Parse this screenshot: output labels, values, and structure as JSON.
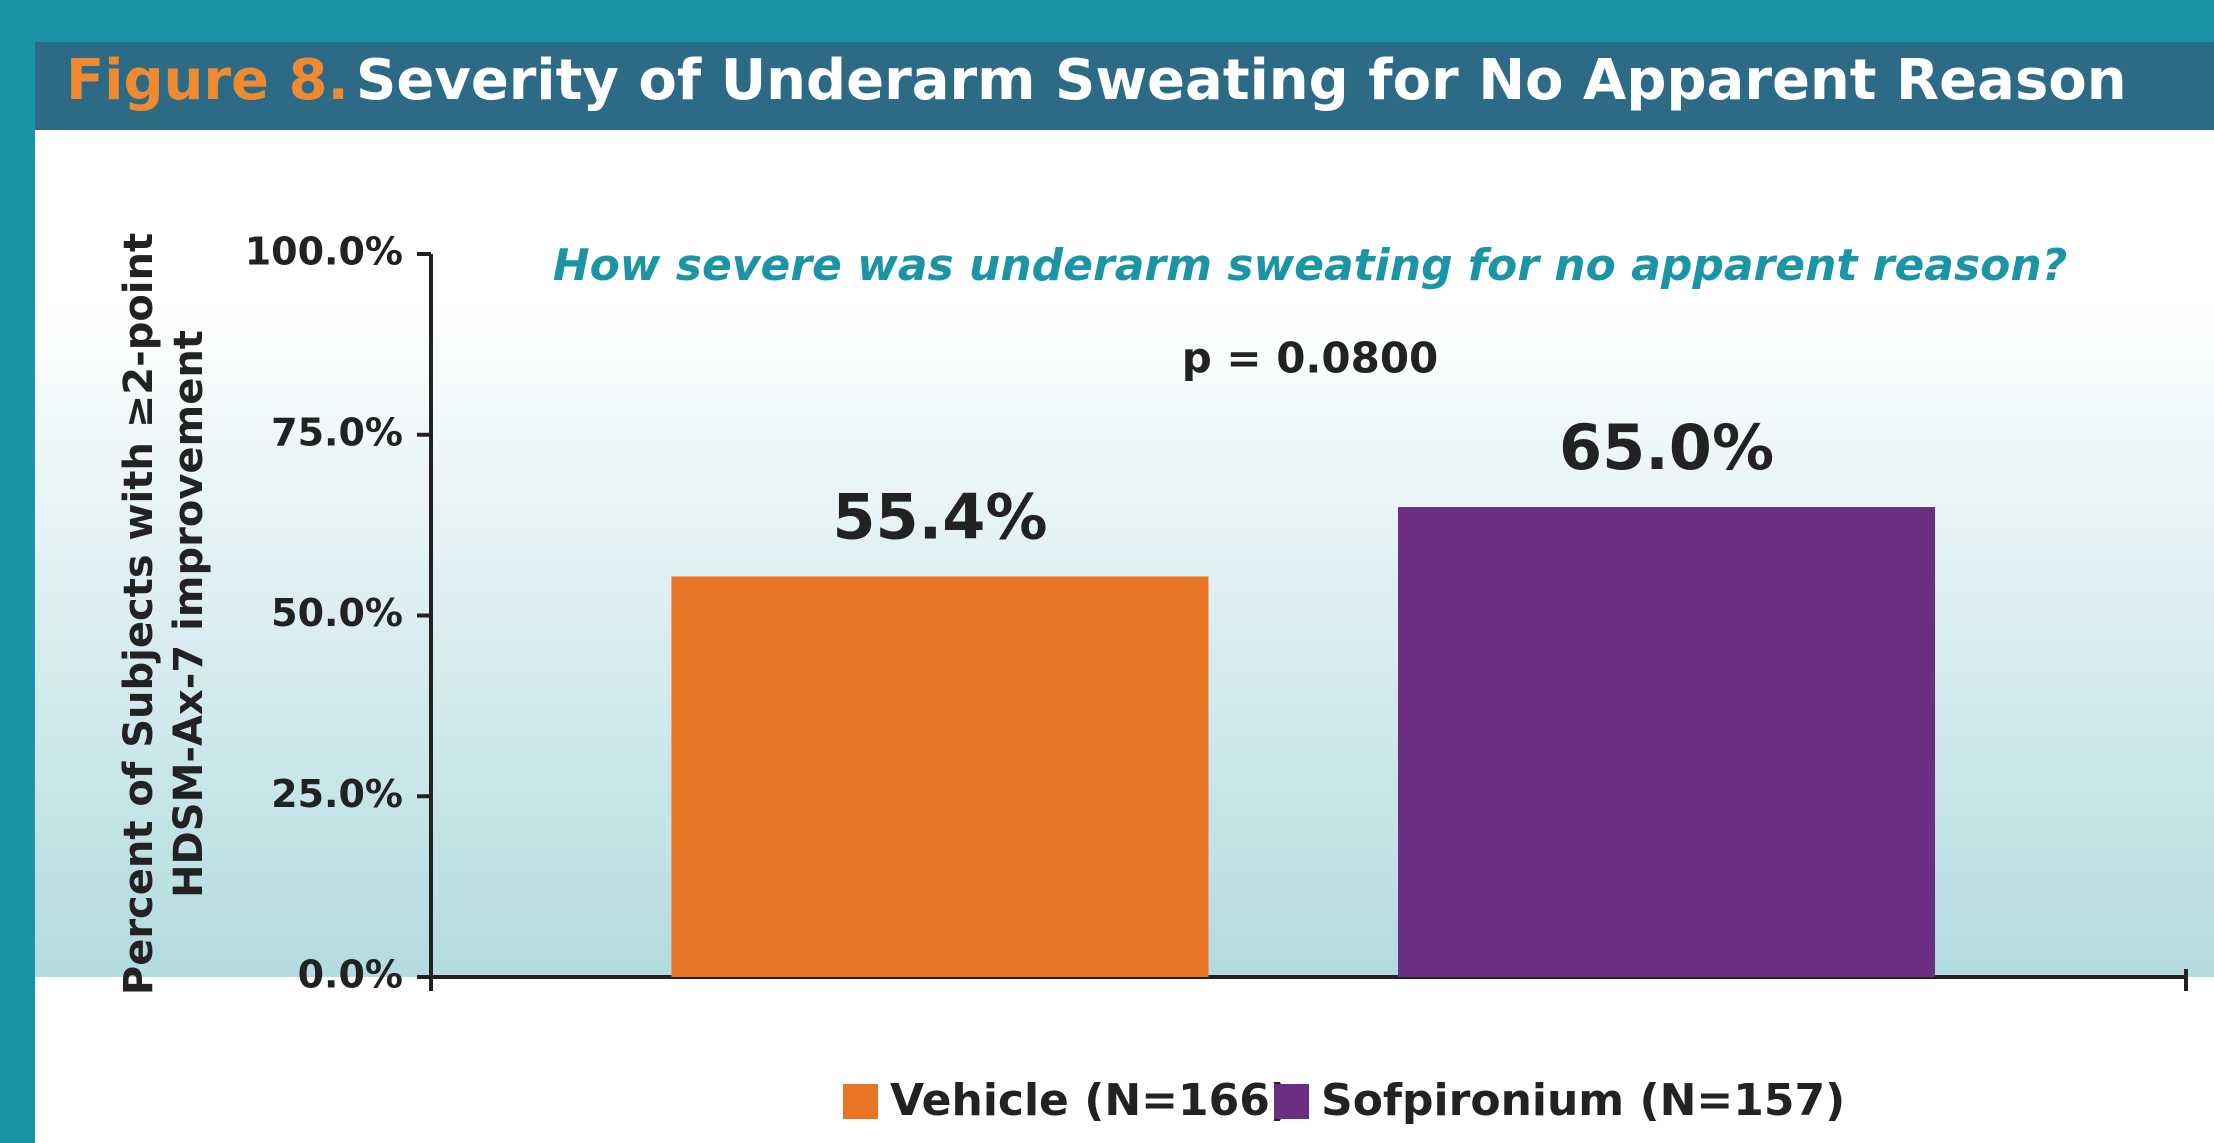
{
  "chart_data": {
    "type": "bar",
    "figure_label": "Figure 8.",
    "title": "Severity of Underarm Sweating for No Apparent Reason",
    "subtitle": "How severe was underarm sweating for no apparent reason?",
    "annotation": "p = 0.0800",
    "ylabel": [
      "Percent of Subjects with ≥2-point",
      "HDSM-Ax-7 improvement"
    ],
    "series": [
      {
        "name": "Vehicle (N=166)",
        "color": "#e87425",
        "values": [
          55.4
        ],
        "value_labels": [
          "55.4%"
        ]
      },
      {
        "name": "Sofpironium (N=157)",
        "color": "#6a2f82",
        "values": [
          65.0
        ],
        "value_labels": [
          "65.0%"
        ]
      }
    ],
    "ylim": [
      0,
      100
    ],
    "yticks": [
      {
        "value": 0,
        "label": "0.0%"
      },
      {
        "value": 25,
        "label": "25.0%"
      },
      {
        "value": 50,
        "label": "50.0%"
      },
      {
        "value": 75,
        "label": "75.0%"
      },
      {
        "value": 100,
        "label": "100.0%"
      }
    ],
    "legend": "bottom"
  }
}
